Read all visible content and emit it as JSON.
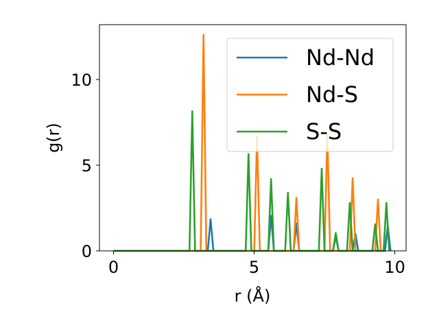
{
  "chart_data": {
    "type": "line",
    "xlabel": "r (Å)",
    "ylabel": "g(r)",
    "xlim": [
      -0.5,
      10.4
    ],
    "ylim": [
      0,
      13.2
    ],
    "xticks": [
      0,
      5,
      10
    ],
    "yticks": [
      0,
      5,
      10
    ],
    "grid": false,
    "legend_position": "top-right",
    "series": [
      {
        "name": "Nd-Nd",
        "color": "#1f77b4",
        "points": [
          [
            0,
            0
          ],
          [
            3.35,
            0
          ],
          [
            3.45,
            1.85
          ],
          [
            3.55,
            0
          ],
          [
            5.5,
            0
          ],
          [
            5.6,
            2.05
          ],
          [
            5.7,
            0
          ],
          [
            6.4,
            0
          ],
          [
            6.5,
            1.6
          ],
          [
            6.6,
            0
          ],
          [
            7.8,
            0
          ],
          [
            7.9,
            0.85
          ],
          [
            8.0,
            0
          ],
          [
            8.5,
            0
          ],
          [
            8.6,
            1.0
          ],
          [
            8.7,
            0
          ],
          [
            9.65,
            0
          ],
          [
            9.75,
            1.45
          ],
          [
            9.85,
            0
          ]
        ]
      },
      {
        "name": "Nd-S",
        "color": "#ff7f0e",
        "points": [
          [
            0,
            0
          ],
          [
            3.1,
            0
          ],
          [
            3.2,
            12.6
          ],
          [
            3.3,
            0
          ],
          [
            5.0,
            0
          ],
          [
            5.1,
            6.7
          ],
          [
            5.2,
            0
          ],
          [
            6.4,
            0
          ],
          [
            6.5,
            3.1
          ],
          [
            6.6,
            0
          ],
          [
            7.5,
            0
          ],
          [
            7.6,
            6.8
          ],
          [
            7.7,
            0
          ],
          [
            8.4,
            0
          ],
          [
            8.5,
            4.25
          ],
          [
            8.6,
            0
          ],
          [
            9.3,
            0
          ],
          [
            9.4,
            3.0
          ],
          [
            9.5,
            0
          ]
        ]
      },
      {
        "name": "S-S",
        "color": "#2ca02c",
        "points": [
          [
            0,
            0
          ],
          [
            2.7,
            0
          ],
          [
            2.8,
            8.15
          ],
          [
            2.9,
            0
          ],
          [
            4.7,
            0
          ],
          [
            4.8,
            5.65
          ],
          [
            4.9,
            0
          ],
          [
            5.5,
            0
          ],
          [
            5.6,
            4.2
          ],
          [
            5.7,
            0
          ],
          [
            6.1,
            0
          ],
          [
            6.2,
            3.4
          ],
          [
            6.3,
            0
          ],
          [
            7.3,
            0
          ],
          [
            7.4,
            4.8
          ],
          [
            7.5,
            0
          ],
          [
            7.8,
            0
          ],
          [
            7.9,
            1.05
          ],
          [
            8.0,
            0
          ],
          [
            8.3,
            0
          ],
          [
            8.4,
            2.8
          ],
          [
            8.5,
            0
          ],
          [
            9.2,
            0
          ],
          [
            9.3,
            1.55
          ],
          [
            9.4,
            0
          ],
          [
            9.6,
            0
          ],
          [
            9.7,
            2.8
          ],
          [
            9.8,
            0
          ]
        ]
      }
    ]
  }
}
